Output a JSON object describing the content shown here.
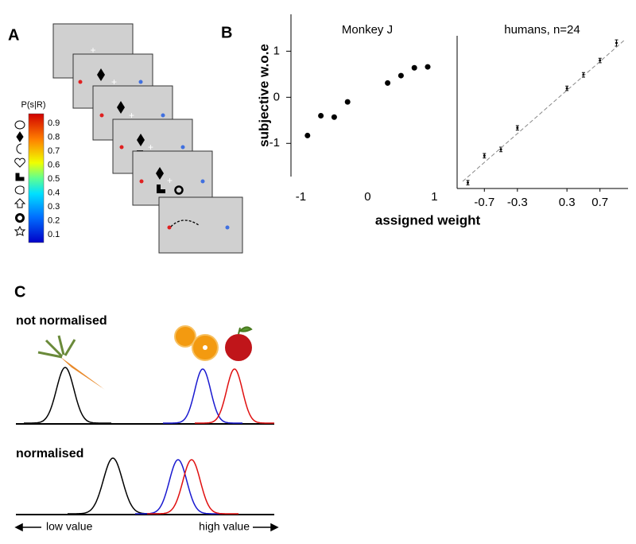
{
  "panel_labels": [
    "A",
    "B",
    "C"
  ],
  "colorbar": {
    "title": "P(s|R)",
    "ticks": [
      0.9,
      0.8,
      0.7,
      0.6,
      0.5,
      0.4,
      0.3,
      0.2,
      0.1
    ]
  },
  "shared_axes": {
    "y_label": "subjective w.o.e",
    "x_label": "assigned weight"
  },
  "chart_data": [
    {
      "type": "scatter",
      "title": "Monkey J",
      "color": "#000000",
      "x": [
        -0.9,
        -0.7,
        -0.5,
        -0.3,
        0.3,
        0.5,
        0.7,
        0.9
      ],
      "values": [
        -0.83,
        -0.4,
        -0.43,
        -0.1,
        0.31,
        0.47,
        0.64,
        0.66
      ],
      "xlim": [
        -1.1,
        1.05
      ],
      "ylim": [
        -1.72,
        1.8
      ],
      "xticks": [
        -1,
        0,
        1
      ],
      "yticks": [
        -1,
        0,
        1
      ]
    },
    {
      "type": "scatter",
      "title": "humans, n=24",
      "color": "#000000",
      "x": [
        -0.9,
        -0.7,
        -0.5,
        -0.3,
        0.3,
        0.5,
        0.7,
        0.9
      ],
      "values": [
        -1.87,
        -1.27,
        -1.13,
        -0.65,
        0.23,
        0.53,
        0.85,
        1.24
      ],
      "errors": [
        0.05,
        0.05,
        0.05,
        0.05,
        0.05,
        0.05,
        0.05,
        0.07
      ],
      "xlim": [
        -1.03,
        1.04
      ],
      "ylim": [
        -2,
        1.4
      ],
      "xticks": [
        -0.7,
        -0.3,
        0.3,
        0.7
      ]
    }
  ],
  "panel_c": {
    "rows": [
      "not normalised",
      "normalised"
    ],
    "axis_left": "low value",
    "axis_right": "high value"
  }
}
